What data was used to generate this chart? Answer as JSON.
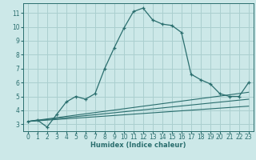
{
  "title": "",
  "xlabel": "Humidex (Indice chaleur)",
  "background_color": "#cce8e8",
  "grid_color": "#aacfcf",
  "line_color": "#2a6e6e",
  "xlim": [
    -0.5,
    23.5
  ],
  "ylim": [
    2.5,
    11.7
  ],
  "yticks": [
    3,
    4,
    5,
    6,
    7,
    8,
    9,
    10,
    11
  ],
  "xticks": [
    0,
    1,
    2,
    3,
    4,
    5,
    6,
    7,
    8,
    9,
    10,
    11,
    12,
    13,
    14,
    15,
    16,
    17,
    18,
    19,
    20,
    21,
    22,
    23
  ],
  "main_line_x": [
    0,
    1,
    2,
    3,
    4,
    5,
    6,
    7,
    8,
    9,
    10,
    11,
    12,
    13,
    14,
    15,
    16,
    17,
    18,
    19,
    20,
    21,
    22,
    23
  ],
  "main_line_y": [
    3.2,
    3.3,
    2.8,
    3.7,
    4.6,
    5.0,
    4.8,
    5.2,
    7.0,
    8.5,
    9.9,
    11.1,
    11.35,
    10.5,
    10.2,
    10.1,
    9.6,
    6.6,
    6.2,
    5.9,
    5.2,
    5.0,
    5.0,
    6.0
  ],
  "ref_lines": [
    {
      "x": [
        0,
        23
      ],
      "y": [
        3.2,
        4.3
      ]
    },
    {
      "x": [
        0,
        23
      ],
      "y": [
        3.2,
        4.8
      ]
    },
    {
      "x": [
        0,
        23
      ],
      "y": [
        3.2,
        5.3
      ]
    }
  ],
  "xlabel_fontsize": 6.0,
  "tick_fontsize": 5.5
}
